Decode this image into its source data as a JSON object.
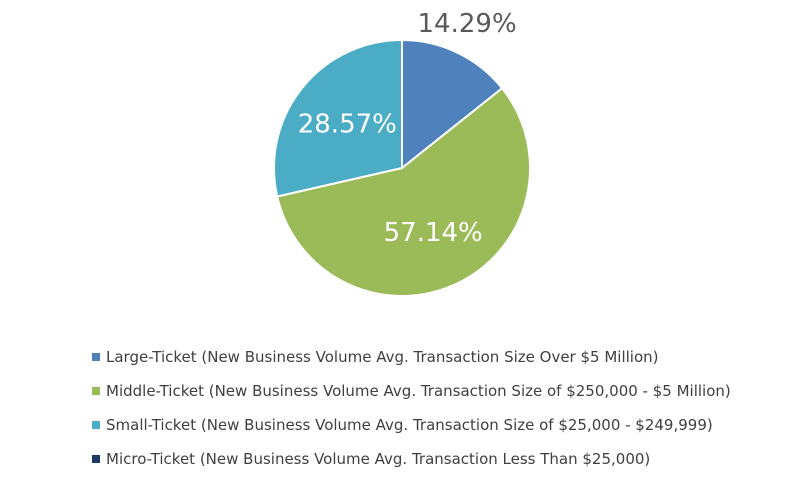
{
  "chart_data": {
    "type": "pie",
    "title": "",
    "legend_position": "bottom",
    "series": [
      {
        "name": "Large-Ticket (New Business Volume Avg. Transaction Size Over $5 Million)",
        "value": 14.29,
        "label": "14.29%",
        "color": "#4F81BD",
        "label_color": "#595959"
      },
      {
        "name": "Middle-Ticket (New Business Volume Avg. Transaction Size of $250,000 - $5 Million)",
        "value": 57.14,
        "label": "57.14%",
        "color": "#9BBB59",
        "label_color": "#FFFFFF"
      },
      {
        "name": "Small-Ticket (New Business Volume Avg. Transaction Size of $25,000 - $249,999)",
        "value": 28.57,
        "label": "28.57%",
        "color": "#4BACC6",
        "label_color": "#FFFFFF"
      },
      {
        "name": "Micro-Ticket (New Business Volume Avg. Transaction Less Than $25,000)",
        "value": 0,
        "label": "",
        "color": "#1F3864",
        "label_color": "#FFFFFF"
      }
    ]
  }
}
